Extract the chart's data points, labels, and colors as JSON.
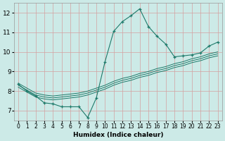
{
  "xlabel": "Humidex (Indice chaleur)",
  "bg_color": "#cceae7",
  "grid_color": "#d4a0a0",
  "line_color": "#1e7a6a",
  "xlim": [
    -0.5,
    23.5
  ],
  "ylim": [
    6.5,
    12.5
  ],
  "xticks": [
    0,
    1,
    2,
    3,
    4,
    5,
    6,
    7,
    8,
    9,
    10,
    11,
    12,
    13,
    14,
    15,
    16,
    17,
    18,
    19,
    20,
    21,
    22,
    23
  ],
  "yticks": [
    7,
    8,
    9,
    10,
    11,
    12
  ],
  "main_x": [
    0,
    1,
    2,
    3,
    4,
    5,
    6,
    7,
    8,
    9,
    10,
    11,
    12,
    13,
    14,
    15,
    16,
    17,
    18,
    19,
    20,
    21,
    22,
    23
  ],
  "main_y": [
    8.35,
    8.0,
    7.75,
    7.4,
    7.35,
    7.2,
    7.2,
    7.2,
    6.65,
    7.65,
    9.5,
    11.05,
    11.55,
    11.85,
    12.2,
    11.3,
    10.8,
    10.4,
    9.75,
    9.8,
    9.85,
    9.95,
    10.3,
    10.5
  ],
  "band_lines": [
    [
      8.4,
      8.15,
      7.9,
      7.8,
      7.75,
      7.8,
      7.85,
      7.9,
      8.0,
      8.15,
      8.3,
      8.5,
      8.65,
      8.75,
      8.9,
      9.0,
      9.15,
      9.25,
      9.4,
      9.5,
      9.65,
      9.75,
      9.9,
      10.0
    ],
    [
      8.3,
      8.05,
      7.8,
      7.7,
      7.65,
      7.7,
      7.75,
      7.8,
      7.9,
      8.05,
      8.2,
      8.4,
      8.55,
      8.65,
      8.8,
      8.9,
      9.05,
      9.15,
      9.3,
      9.4,
      9.55,
      9.65,
      9.8,
      9.9
    ],
    [
      8.2,
      7.95,
      7.7,
      7.6,
      7.55,
      7.6,
      7.65,
      7.7,
      7.8,
      7.95,
      8.1,
      8.3,
      8.45,
      8.55,
      8.7,
      8.8,
      8.95,
      9.05,
      9.2,
      9.3,
      9.45,
      9.55,
      9.7,
      9.8
    ]
  ]
}
